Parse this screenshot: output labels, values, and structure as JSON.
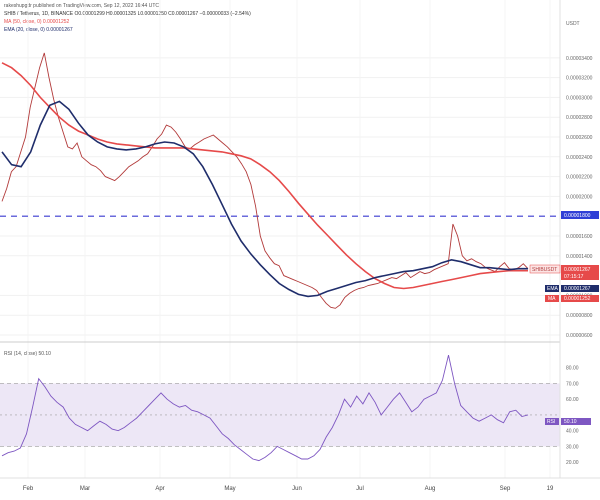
{
  "header": {
    "author_line": "rakeshupgdr published on TradingView.com, Sep 12, 2022 16:44 UTC",
    "symbol_line": "SHIB / Tetherus, 1D, BINANCE  O0.00001299  H0.00001325  L0.00001250  C0.00001267  −0.00000033 (−2.54%)",
    "ma_line": "MA (50, close, 0)  0.00001252",
    "ema_line": "EMA (20, close, 0)  0.00001267",
    "currency": "USDT"
  },
  "colors": {
    "ma": "#e64a4a",
    "ema": "#1f2d6b",
    "rsi": "#7e57c2",
    "band": "#ede7f6",
    "candles": "#b23a3a",
    "resistance": "#3a3ad0"
  },
  "chart_data": {
    "type": "line",
    "x_ticks": [
      "Feb",
      "Mar",
      "Apr",
      "May",
      "Jun",
      "Jul",
      "Aug",
      "Sep",
      "19"
    ],
    "price_axis": {
      "ylim": [
        6e-06,
        3.58e-05
      ],
      "ticks": [
        "0.00003400",
        "0.00003200",
        "0.00003000",
        "0.00002800",
        "0.00002600",
        "0.00002400",
        "0.00002200",
        "0.00002000",
        "0.00001600",
        "0.00001400",
        "0.00001000",
        "0.00000800",
        "0.00000600"
      ]
    },
    "resistance_level": 1.8e-05,
    "tags": {
      "resistance": "0.00001800",
      "symbol": "SHIBUSDT",
      "last": "0.00001267",
      "countdown": "07:15:17",
      "ema_label": "EMA",
      "ema_value": "0.00001267",
      "ma_label": "MA",
      "ma_value": "0.00001252"
    },
    "series": [
      {
        "name": "SHIB / Tetherus",
        "values": [
          1.95e-05,
          2.08e-05,
          2.25e-05,
          2.3e-05,
          2.45e-05,
          2.6e-05,
          2.9e-05,
          3.1e-05,
          3.3e-05,
          3.45e-05,
          3.2e-05,
          2.98e-05,
          2.8e-05,
          2.65e-05,
          2.5e-05,
          2.48e-05,
          2.54e-05,
          2.4e-05,
          2.36e-05,
          2.32e-05,
          2.3e-05,
          2.26e-05,
          2.2e-05,
          2.18e-05,
          2.16e-05,
          2.2e-05,
          2.25e-05,
          2.3e-05,
          2.33e-05,
          2.36e-05,
          2.4e-05,
          2.43e-05,
          2.5e-05,
          2.58e-05,
          2.63e-05,
          2.72e-05,
          2.7e-05,
          2.65e-05,
          2.58e-05,
          2.5e-05,
          2.48e-05,
          2.52e-05,
          2.55e-05,
          2.58e-05,
          2.6e-05,
          2.62e-05,
          2.58e-05,
          2.54e-05,
          2.5e-05,
          2.45e-05,
          2.4e-05,
          2.33e-05,
          2.25e-05,
          2.12e-05,
          1.9e-05,
          1.6e-05,
          1.45e-05,
          1.38e-05,
          1.32e-05,
          1.3e-05,
          1.2e-05,
          1.18e-05,
          1.16e-05,
          1.14e-05,
          1.12e-05,
          1.1e-05,
          1.08e-05,
          1.05e-05,
          9.8e-06,
          9.2e-06,
          8.8e-06,
          8.7e-06,
          9.05e-06,
          9.8e-06,
          1.02e-05,
          1.05e-05,
          1.07e-05,
          1.08e-05,
          1.1e-05,
          1.11e-05,
          1.12e-05,
          1.14e-05,
          1.16e-05,
          1.18e-05,
          1.17e-05,
          1.2e-05,
          1.23e-05,
          1.18e-05,
          1.21e-05,
          1.24e-05,
          1.22e-05,
          1.23e-05,
          1.26e-05,
          1.28e-05,
          1.3e-05,
          1.32e-05,
          1.72e-05,
          1.6e-05,
          1.4e-05,
          1.35e-05,
          1.37e-05,
          1.34e-05,
          1.32e-05,
          1.28e-05,
          1.26e-05,
          1.24e-05,
          1.29e-05,
          1.33e-05,
          1.27e-05,
          1.26e-05,
          1.28e-05,
          1.32e-05,
          1.27e-05
        ]
      },
      {
        "name": "MA (50, close, 0)",
        "values": [
          3.35e-05,
          3.3e-05,
          3.22e-05,
          3.12e-05,
          3e-05,
          2.9e-05,
          2.8e-05,
          2.72e-05,
          2.66e-05,
          2.62e-05,
          2.58e-05,
          2.55e-05,
          2.53e-05,
          2.52e-05,
          2.51e-05,
          2.5e-05,
          2.49e-05,
          2.49e-05,
          2.49e-05,
          2.49e-05,
          2.48e-05,
          2.47e-05,
          2.46e-05,
          2.45e-05,
          2.43e-05,
          2.41e-05,
          2.38e-05,
          2.32e-05,
          2.25e-05,
          2.16e-05,
          2.05e-05,
          1.93e-05,
          1.82e-05,
          1.71e-05,
          1.61e-05,
          1.51e-05,
          1.41e-05,
          1.32e-05,
          1.24e-05,
          1.17e-05,
          1.12e-05,
          1.08e-05,
          1.07e-05,
          1.08e-05,
          1.1e-05,
          1.12e-05,
          1.14e-05,
          1.16e-05,
          1.18e-05,
          1.2e-05,
          1.22e-05,
          1.23e-05,
          1.24e-05,
          1.25e-05,
          1.25e-05,
          1.25e-05
        ]
      },
      {
        "name": "EMA (20, close, 0)",
        "values": [
          2.45e-05,
          2.32e-05,
          2.3e-05,
          2.45e-05,
          2.72e-05,
          2.92e-05,
          2.96e-05,
          2.88e-05,
          2.74e-05,
          2.62e-05,
          2.55e-05,
          2.5e-05,
          2.48e-05,
          2.47e-05,
          2.48e-05,
          2.5e-05,
          2.53e-05,
          2.55e-05,
          2.54e-05,
          2.5e-05,
          2.43e-05,
          2.3e-05,
          2.12e-05,
          1.92e-05,
          1.72e-05,
          1.55e-05,
          1.42e-05,
          1.31e-05,
          1.21e-05,
          1.12e-05,
          1.06e-05,
          1.01e-05,
          9.9e-06,
          1e-05,
          1.04e-05,
          1.07e-05,
          1.1e-05,
          1.13e-05,
          1.15e-05,
          1.18e-05,
          1.2e-05,
          1.22e-05,
          1.24e-05,
          1.25e-05,
          1.27e-05,
          1.29e-05,
          1.33e-05,
          1.36e-05,
          1.34e-05,
          1.31e-05,
          1.28e-05,
          1.28e-05,
          1.27e-05,
          1.26e-05,
          1.27e-05,
          1.27e-05
        ]
      }
    ],
    "rsi": {
      "name": "RSI (14, close)",
      "header": "RSI (14, close)  50.10",
      "value_tag": "50.10",
      "tag_label": "RSI",
      "ylim": [
        15,
        90
      ],
      "ticks": [
        "80.00",
        "70.00",
        "60.00",
        "40.00",
        "30.00",
        "20.00"
      ],
      "band": [
        30,
        70
      ],
      "midline": 50,
      "values": [
        24,
        26,
        27,
        29,
        38,
        55,
        73,
        68,
        62,
        58,
        55,
        48,
        44,
        42,
        40,
        43,
        46,
        44,
        41,
        40,
        42,
        45,
        48,
        52,
        56,
        60,
        64,
        60,
        57,
        55,
        56,
        53,
        52,
        50,
        48,
        43,
        38,
        35,
        31,
        28,
        25,
        22,
        21,
        23,
        26,
        30,
        28,
        26,
        24,
        22,
        22,
        24,
        28,
        36,
        42,
        50,
        60,
        55,
        62,
        57,
        64,
        58,
        50,
        55,
        60,
        64,
        58,
        52,
        55,
        60,
        62,
        64,
        72,
        88,
        70,
        56,
        52,
        48,
        46,
        48,
        50,
        47,
        45,
        52,
        53,
        49,
        50
      ]
    }
  }
}
